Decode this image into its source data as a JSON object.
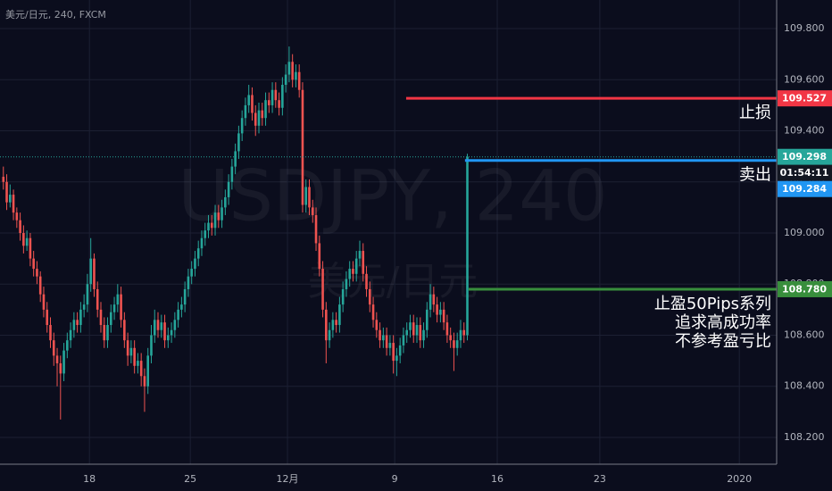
{
  "chart_data": {
    "type": "candlestick",
    "title": "美元/日元, 240, FXCM",
    "watermark": "USDJPY, 240",
    "watermark_sub": "美元/日元",
    "up_color": "#26a69a",
    "down_color": "#ef5350",
    "grid": true,
    "xlim": [
      -1,
      230
    ],
    "xticks": [
      {
        "value": 25.6,
        "label": "18"
      },
      {
        "value": 55.6,
        "label": "25"
      },
      {
        "value": 84.5,
        "label": "12月"
      },
      {
        "value": 116.4,
        "label": "9"
      },
      {
        "value": 146.9,
        "label": "16"
      },
      {
        "value": 177.4,
        "label": "23"
      },
      {
        "value": 218.9,
        "label": "2020"
      }
    ],
    "ylim": [
      108.095,
      109.912
    ],
    "yticks": [
      {
        "value": 108.2,
        "label": "108.200"
      },
      {
        "value": 108.4,
        "label": "108.400"
      },
      {
        "value": 108.6,
        "label": "108.600"
      },
      {
        "value": 108.8,
        "label": "108.800"
      },
      {
        "value": 109.0,
        "label": "109.000"
      },
      {
        "value": 109.2,
        "label": "109.200"
      },
      {
        "value": 109.4,
        "label": "109.400"
      },
      {
        "value": 109.6,
        "label": "109.600"
      },
      {
        "value": 109.8,
        "label": "109.800"
      }
    ],
    "candles": [
      [
        109.22,
        109.26,
        109.17,
        109.2
      ],
      [
        109.2,
        109.23,
        109.09,
        109.12
      ],
      [
        109.12,
        109.19,
        109.1,
        109.15
      ],
      [
        109.15,
        109.17,
        109.05,
        109.08
      ],
      [
        109.08,
        109.1,
        109.02,
        109.05
      ],
      [
        109.05,
        109.08,
        108.97,
        109.0
      ],
      [
        109.0,
        109.03,
        108.92,
        108.95
      ],
      [
        108.95,
        109.01,
        108.93,
        108.98
      ],
      [
        108.98,
        109.0,
        108.87,
        108.9
      ],
      [
        108.9,
        108.93,
        108.83,
        108.86
      ],
      [
        108.86,
        108.89,
        108.8,
        108.83
      ],
      [
        108.83,
        108.85,
        108.73,
        108.76
      ],
      [
        108.76,
        108.79,
        108.67,
        108.7
      ],
      [
        108.7,
        108.73,
        108.61,
        108.64
      ],
      [
        108.64,
        108.67,
        108.55,
        108.58
      ],
      [
        108.58,
        108.61,
        108.48,
        108.52
      ],
      [
        108.52,
        108.55,
        108.4,
        108.49
      ],
      [
        108.49,
        108.52,
        108.27,
        108.45
      ],
      [
        108.45,
        108.57,
        108.42,
        108.54
      ],
      [
        108.54,
        108.61,
        108.51,
        108.58
      ],
      [
        108.58,
        108.65,
        108.55,
        108.62
      ],
      [
        108.62,
        108.69,
        108.59,
        108.66
      ],
      [
        108.66,
        108.69,
        108.61,
        108.64
      ],
      [
        108.64,
        108.73,
        108.61,
        108.7
      ],
      [
        108.7,
        108.76,
        108.67,
        108.72
      ],
      [
        108.72,
        108.84,
        108.69,
        108.8
      ],
      [
        108.8,
        108.98,
        108.77,
        108.9
      ],
      [
        108.9,
        108.92,
        108.75,
        108.78
      ],
      [
        108.78,
        108.81,
        108.67,
        108.7
      ],
      [
        108.7,
        108.73,
        108.61,
        108.64
      ],
      [
        108.64,
        108.67,
        108.55,
        108.58
      ],
      [
        108.58,
        108.67,
        108.55,
        108.64
      ],
      [
        108.64,
        108.72,
        108.61,
        108.69
      ],
      [
        108.69,
        108.75,
        108.66,
        108.72
      ],
      [
        108.72,
        108.8,
        108.69,
        108.76
      ],
      [
        108.76,
        108.79,
        108.63,
        108.66
      ],
      [
        108.66,
        108.69,
        108.55,
        108.58
      ],
      [
        108.58,
        108.61,
        108.48,
        108.52
      ],
      [
        108.52,
        108.58,
        108.49,
        108.55
      ],
      [
        108.55,
        108.58,
        108.45,
        108.48
      ],
      [
        108.48,
        108.53,
        108.45,
        108.5
      ],
      [
        108.5,
        108.53,
        108.4,
        108.44
      ],
      [
        108.44,
        108.47,
        108.3,
        108.4
      ],
      [
        108.4,
        108.55,
        108.37,
        108.52
      ],
      [
        108.52,
        108.64,
        108.49,
        108.6
      ],
      [
        108.6,
        108.7,
        108.57,
        108.66
      ],
      [
        108.66,
        108.69,
        108.59,
        108.62
      ],
      [
        108.62,
        108.68,
        108.59,
        108.65
      ],
      [
        108.65,
        108.68,
        108.55,
        108.58
      ],
      [
        108.58,
        108.63,
        108.55,
        108.6
      ],
      [
        108.6,
        108.65,
        108.57,
        108.62
      ],
      [
        108.62,
        108.69,
        108.59,
        108.66
      ],
      [
        108.66,
        108.73,
        108.63,
        108.7
      ],
      [
        108.7,
        108.75,
        108.67,
        108.72
      ],
      [
        108.72,
        108.81,
        108.69,
        108.78
      ],
      [
        108.78,
        108.86,
        108.75,
        108.83
      ],
      [
        108.83,
        108.89,
        108.8,
        108.86
      ],
      [
        108.86,
        108.93,
        108.83,
        108.9
      ],
      [
        108.9,
        108.97,
        108.87,
        108.94
      ],
      [
        108.94,
        109.01,
        108.91,
        108.98
      ],
      [
        108.98,
        109.04,
        108.95,
        109.01
      ],
      [
        109.01,
        109.07,
        108.98,
        109.04
      ],
      [
        109.04,
        109.07,
        108.99,
        109.02
      ],
      [
        109.02,
        109.11,
        108.99,
        109.08
      ],
      [
        109.08,
        109.11,
        109.02,
        109.05
      ],
      [
        109.05,
        109.13,
        109.02,
        109.1
      ],
      [
        109.1,
        109.17,
        109.07,
        109.14
      ],
      [
        109.14,
        109.23,
        109.11,
        109.2
      ],
      [
        109.2,
        109.29,
        109.17,
        109.26
      ],
      [
        109.26,
        109.35,
        109.23,
        109.32
      ],
      [
        109.32,
        109.42,
        109.29,
        109.39
      ],
      [
        109.39,
        109.48,
        109.36,
        109.45
      ],
      [
        109.45,
        109.53,
        109.42,
        109.5
      ],
      [
        109.5,
        109.58,
        109.47,
        109.54
      ],
      [
        109.54,
        109.57,
        109.44,
        109.47
      ],
      [
        109.47,
        109.5,
        109.38,
        109.42
      ],
      [
        109.42,
        109.51,
        109.39,
        109.48
      ],
      [
        109.48,
        109.51,
        109.42,
        109.45
      ],
      [
        109.45,
        109.55,
        109.42,
        109.52
      ],
      [
        109.52,
        109.55,
        109.47,
        109.5
      ],
      [
        109.5,
        109.59,
        109.47,
        109.56
      ],
      [
        109.56,
        109.59,
        109.49,
        109.52
      ],
      [
        109.52,
        109.55,
        109.46,
        109.49
      ],
      [
        109.49,
        109.61,
        109.46,
        109.58
      ],
      [
        109.58,
        109.66,
        109.55,
        109.62
      ],
      [
        109.62,
        109.73,
        109.59,
        109.67
      ],
      [
        109.67,
        109.7,
        109.57,
        109.6
      ],
      [
        109.6,
        109.66,
        109.57,
        109.63
      ],
      [
        109.63,
        109.66,
        109.53,
        109.56
      ],
      [
        109.56,
        109.59,
        109.08,
        109.11
      ],
      [
        109.11,
        109.21,
        109.08,
        109.18
      ],
      [
        109.18,
        109.21,
        109.07,
        109.1
      ],
      [
        109.1,
        109.13,
        109.04,
        109.07
      ],
      [
        109.07,
        109.1,
        108.93,
        108.96
      ],
      [
        108.96,
        108.99,
        108.83,
        108.86
      ],
      [
        108.86,
        108.89,
        108.67,
        108.7
      ],
      [
        108.7,
        108.73,
        108.49,
        108.58
      ],
      [
        108.58,
        108.65,
        108.55,
        108.62
      ],
      [
        108.62,
        108.69,
        108.59,
        108.66
      ],
      [
        108.66,
        108.69,
        108.61,
        108.64
      ],
      [
        108.64,
        108.75,
        108.61,
        108.72
      ],
      [
        108.72,
        108.81,
        108.69,
        108.78
      ],
      [
        108.78,
        108.85,
        108.75,
        108.82
      ],
      [
        108.82,
        108.89,
        108.79,
        108.86
      ],
      [
        108.86,
        108.89,
        108.81,
        108.84
      ],
      [
        108.84,
        108.93,
        108.81,
        108.9
      ],
      [
        108.9,
        108.97,
        108.87,
        108.93
      ],
      [
        108.93,
        108.96,
        108.81,
        108.84
      ],
      [
        108.84,
        108.87,
        108.75,
        108.78
      ],
      [
        108.78,
        108.81,
        108.69,
        108.72
      ],
      [
        108.72,
        108.75,
        108.63,
        108.66
      ],
      [
        108.66,
        108.69,
        108.59,
        108.62
      ],
      [
        108.62,
        108.65,
        108.55,
        108.58
      ],
      [
        108.58,
        108.63,
        108.55,
        108.6
      ],
      [
        108.6,
        108.63,
        108.52,
        108.55
      ],
      [
        108.55,
        108.6,
        108.52,
        108.57
      ],
      [
        108.57,
        108.6,
        108.45,
        108.5
      ],
      [
        108.5,
        108.55,
        108.44,
        108.52
      ],
      [
        108.52,
        108.59,
        108.49,
        108.56
      ],
      [
        108.56,
        108.63,
        108.53,
        108.6
      ],
      [
        108.6,
        108.65,
        108.57,
        108.62
      ],
      [
        108.62,
        108.68,
        108.59,
        108.65
      ],
      [
        108.65,
        108.68,
        108.57,
        108.6
      ],
      [
        108.6,
        108.67,
        108.57,
        108.64
      ],
      [
        108.64,
        108.67,
        108.55,
        108.58
      ],
      [
        108.58,
        108.65,
        108.55,
        108.62
      ],
      [
        108.62,
        108.73,
        108.59,
        108.7
      ],
      [
        108.7,
        108.8,
        108.67,
        108.76
      ],
      [
        108.76,
        108.79,
        108.69,
        108.72
      ],
      [
        108.72,
        108.75,
        108.65,
        108.68
      ],
      [
        108.68,
        108.73,
        108.65,
        108.7
      ],
      [
        108.7,
        108.73,
        108.62,
        108.65
      ],
      [
        108.65,
        108.68,
        108.57,
        108.6
      ],
      [
        108.6,
        108.63,
        108.55,
        108.58
      ],
      [
        108.58,
        108.61,
        108.46,
        108.55
      ],
      [
        108.55,
        108.61,
        108.52,
        108.58
      ],
      [
        108.58,
        108.66,
        108.55,
        108.62
      ],
      [
        108.62,
        108.65,
        108.57,
        108.6
      ],
      [
        108.6,
        109.31,
        108.58,
        109.298
      ]
    ],
    "last_price": {
      "value": 109.298,
      "label": "109.298",
      "countdown": "01:54:11",
      "color": "#26a69a"
    },
    "levels": [
      {
        "value": 109.527,
        "label": "109.527",
        "color": "#f23645",
        "start": 119.8,
        "notes": [
          "止损"
        ]
      },
      {
        "value": 109.284,
        "label": "109.284",
        "color": "#2196f3",
        "start": 137.3,
        "notes": [
          "卖出"
        ]
      },
      {
        "value": 108.78,
        "label": "108.780",
        "color": "#388e3c",
        "start": 138.4,
        "notes": [
          "止盈50Pips系列",
          "追求高成功率",
          "不参考盈亏比"
        ]
      }
    ]
  }
}
